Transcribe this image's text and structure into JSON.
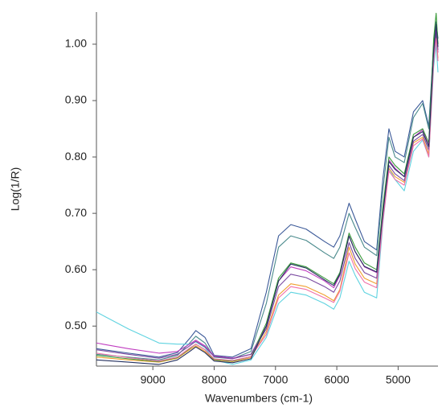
{
  "chart_data": {
    "type": "line",
    "x_label": "Wavenumbers (cm-1)",
    "y_label": "Log(1/R)",
    "x": [
      9920,
      9400,
      8900,
      8600,
      8400,
      8300,
      8150,
      8000,
      7700,
      7400,
      7150,
      6950,
      6750,
      6500,
      6200,
      6050,
      5950,
      5800,
      5700,
      5550,
      5350,
      5250,
      5150,
      5050,
      4900,
      4750,
      4600,
      4500,
      4420,
      4380,
      4350
    ],
    "xlim": [
      9920,
      4350
    ],
    "xticks": [
      9000,
      8000,
      7000,
      6000,
      5000
    ],
    "x_reversed": true,
    "ylim": [
      0.429,
      1.057
    ],
    "yticks": [
      {
        "value": 0.5,
        "label": "0.50"
      },
      {
        "value": 0.6,
        "label": "0.60"
      },
      {
        "value": 0.7,
        "label": "0.70"
      },
      {
        "value": 0.8,
        "label": "0.80"
      },
      {
        "value": 0.9,
        "label": "0.90"
      },
      {
        "value": 1.0,
        "label": "1.00"
      }
    ],
    "grid": false,
    "series": [
      {
        "color": "#3b5998",
        "values": [
          0.46,
          0.452,
          0.445,
          0.453,
          0.478,
          0.492,
          0.48,
          0.448,
          0.445,
          0.46,
          0.56,
          0.66,
          0.68,
          0.672,
          0.65,
          0.64,
          0.66,
          0.718,
          0.69,
          0.65,
          0.635,
          0.76,
          0.85,
          0.81,
          0.8,
          0.88,
          0.9,
          0.855,
          1.0,
          1.04,
          1.01
        ]
      },
      {
        "color": "#4a8a8c",
        "values": [
          0.45,
          0.445,
          0.44,
          0.448,
          0.47,
          0.482,
          0.47,
          0.445,
          0.442,
          0.455,
          0.54,
          0.64,
          0.66,
          0.652,
          0.63,
          0.62,
          0.64,
          0.7,
          0.675,
          0.64,
          0.625,
          0.74,
          0.835,
          0.8,
          0.79,
          0.87,
          0.895,
          0.85,
          0.99,
          1.03,
          1.0
        ]
      },
      {
        "color": "#5fd3e0",
        "values": [
          0.525,
          0.495,
          0.47,
          0.468,
          0.468,
          0.472,
          0.462,
          0.44,
          0.432,
          0.44,
          0.48,
          0.54,
          0.56,
          0.555,
          0.54,
          0.53,
          0.55,
          0.615,
          0.59,
          0.56,
          0.55,
          0.68,
          0.78,
          0.76,
          0.74,
          0.81,
          0.83,
          0.8,
          0.96,
          1.0,
          0.95
        ]
      },
      {
        "color": "#c03cc0",
        "values": [
          0.47,
          0.46,
          0.452,
          0.455,
          0.468,
          0.475,
          0.465,
          0.447,
          0.443,
          0.45,
          0.5,
          0.58,
          0.605,
          0.598,
          0.58,
          0.568,
          0.59,
          0.66,
          0.632,
          0.605,
          0.595,
          0.705,
          0.795,
          0.78,
          0.765,
          0.835,
          0.848,
          0.82,
          0.985,
          1.025,
          0.985
        ]
      },
      {
        "color": "#f0a030",
        "values": [
          0.445,
          0.44,
          0.436,
          0.443,
          0.458,
          0.465,
          0.455,
          0.44,
          0.437,
          0.444,
          0.49,
          0.555,
          0.575,
          0.57,
          0.555,
          0.545,
          0.565,
          0.64,
          0.61,
          0.585,
          0.575,
          0.69,
          0.78,
          0.765,
          0.755,
          0.825,
          0.835,
          0.805,
          0.975,
          1.015,
          0.975
        ]
      },
      {
        "color": "#3a9a3a",
        "values": [
          0.448,
          0.442,
          0.437,
          0.444,
          0.46,
          0.468,
          0.458,
          0.441,
          0.438,
          0.446,
          0.505,
          0.585,
          0.612,
          0.605,
          0.585,
          0.575,
          0.595,
          0.665,
          0.64,
          0.612,
          0.6,
          0.71,
          0.8,
          0.785,
          0.77,
          0.84,
          0.85,
          0.825,
          1.01,
          1.055,
          1.0
        ]
      },
      {
        "color": "#7a4aa0",
        "values": [
          0.458,
          0.45,
          0.443,
          0.45,
          0.465,
          0.473,
          0.463,
          0.446,
          0.442,
          0.45,
          0.495,
          0.57,
          0.592,
          0.586,
          0.57,
          0.56,
          0.58,
          0.648,
          0.62,
          0.595,
          0.585,
          0.695,
          0.785,
          0.77,
          0.758,
          0.828,
          0.84,
          0.812,
          0.98,
          1.02,
          0.99
        ]
      },
      {
        "color": "#f070a8",
        "values": [
          0.452,
          0.444,
          0.438,
          0.445,
          0.461,
          0.468,
          0.458,
          0.442,
          0.439,
          0.446,
          0.485,
          0.55,
          0.57,
          0.565,
          0.55,
          0.542,
          0.562,
          0.63,
          0.602,
          0.578,
          0.568,
          0.685,
          0.775,
          0.76,
          0.75,
          0.82,
          0.832,
          0.8,
          0.97,
          1.01,
          0.97
        ]
      },
      {
        "color": "#24305e",
        "values": [
          0.44,
          0.436,
          0.432,
          0.44,
          0.455,
          0.463,
          0.453,
          0.438,
          0.435,
          0.442,
          0.5,
          0.58,
          0.61,
          0.603,
          0.582,
          0.572,
          0.592,
          0.66,
          0.632,
          0.606,
          0.596,
          0.7,
          0.792,
          0.778,
          0.765,
          0.835,
          0.845,
          0.818,
          0.99,
          1.035,
          0.995
        ]
      }
    ]
  }
}
